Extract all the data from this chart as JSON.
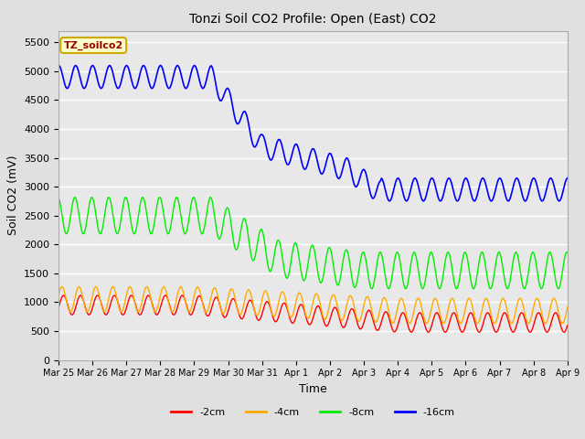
{
  "title": "Tonzi Soil CO2 Profile: Open (East) CO2",
  "ylabel": "Soil CO2 (mV)",
  "xlabel": "Time",
  "ylim": [
    0,
    5700
  ],
  "yticks": [
    0,
    500,
    1000,
    1500,
    2000,
    2500,
    3000,
    3500,
    4000,
    4500,
    5000,
    5500
  ],
  "bg_color": "#e0e0e0",
  "plot_bg": "#e8e8e8",
  "legend_label": "TZ_soilco2",
  "legend_box_color": "#ffffcc",
  "legend_box_border": "#ccaa00",
  "series_labels": [
    "-2cm",
    "-4cm",
    "-8cm",
    "-16cm"
  ],
  "series_colors": [
    "#ff0000",
    "#ffaa00",
    "#00ee00",
    "#0000ff"
  ],
  "x_tick_labels": [
    "Mar 25",
    "Mar 26",
    "Mar 27",
    "Mar 28",
    "Mar 29",
    "Mar 30",
    "Mar 31",
    "Apr 1",
    "Apr 2",
    "Apr 3",
    "Apr 4",
    "Apr 5",
    "Apr 6",
    "Apr 7",
    "Apr 8",
    "Apr 9"
  ],
  "oscillation_freq": 2.0,
  "n_points": 480
}
